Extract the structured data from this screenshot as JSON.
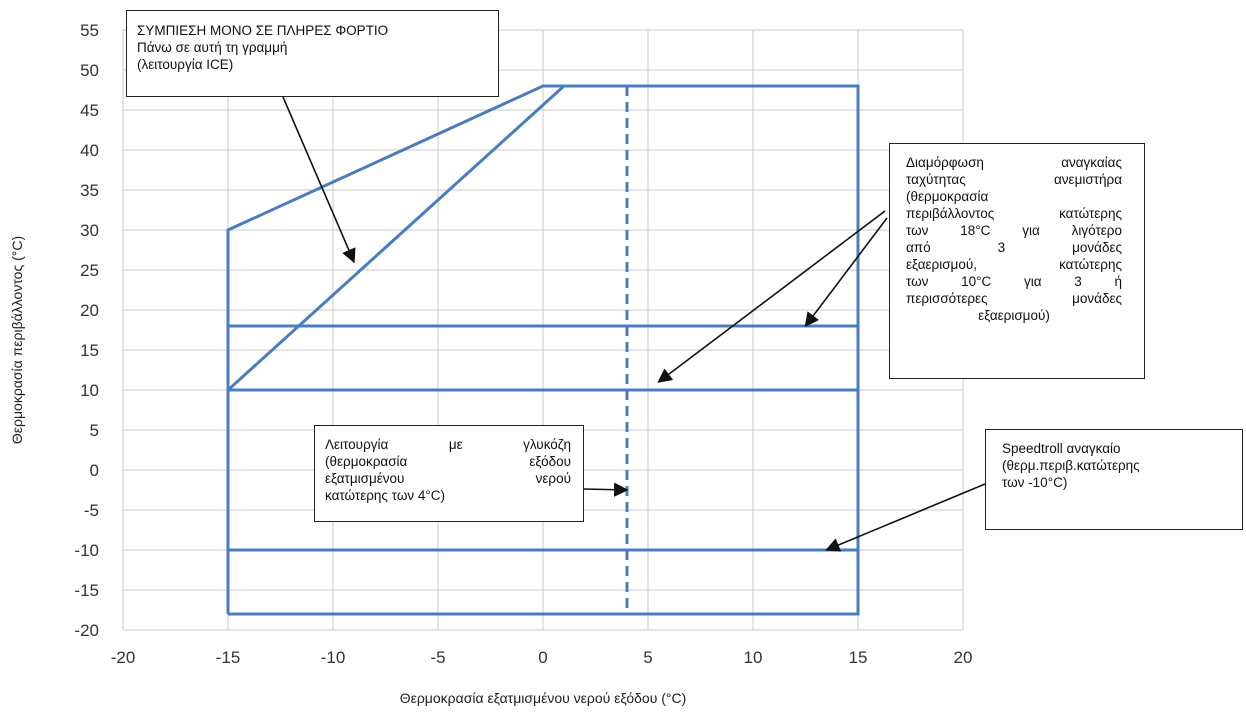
{
  "chart_data": {
    "type": "line",
    "title": "",
    "xlabel": "Θερμοκρασία εξατμισμένου νερού εξόδου (°C)",
    "ylabel": "Θερμοκρασία περιβάλλοντος (°C)",
    "xlim": [
      -20,
      20
    ],
    "ylim": [
      -20,
      55
    ],
    "x_ticks": [
      "-20",
      "-15",
      "-10",
      "-5",
      "0",
      "5",
      "10",
      "15",
      "20"
    ],
    "y_ticks": [
      "55",
      "50",
      "45",
      "40",
      "35",
      "30",
      "25",
      "20",
      "15",
      "10",
      "5",
      "0",
      "-5",
      "-10",
      "-15",
      "-20"
    ],
    "grid": true,
    "series": [
      {
        "style": "solid",
        "points": [
          [
            -15,
            -18
          ],
          [
            -15,
            30
          ],
          [
            0,
            48
          ],
          [
            15,
            48
          ],
          [
            15,
            -18
          ],
          [
            -15,
            -18
          ]
        ]
      },
      {
        "style": "solid",
        "points": [
          [
            -15,
            10
          ],
          [
            1,
            48
          ]
        ]
      },
      {
        "style": "solid",
        "points": [
          [
            -15,
            18
          ],
          [
            15,
            18
          ]
        ]
      },
      {
        "style": "solid",
        "points": [
          [
            -15,
            10
          ],
          [
            15,
            10
          ]
        ]
      },
      {
        "style": "solid",
        "points": [
          [
            -15,
            -10
          ],
          [
            15,
            -10
          ]
        ]
      },
      {
        "style": "dashed",
        "points": [
          [
            4,
            48
          ],
          [
            4,
            -18
          ]
        ]
      }
    ],
    "annotations": [
      {
        "id": "ice",
        "lines": [
          "ΣΥΜΠΙΕΣΗ ΜΟΝΟ ΣΕ ΠΛΗΡΕΣ ΦΟΡΤΙΟ",
          "Πάνω σε αυτή τη γραμμή",
          "(λειτουργία ICE)"
        ],
        "targets": [
          [
            -9,
            26
          ]
        ]
      },
      {
        "id": "fan",
        "lines": [
          "Διαμόρφωση αναγκαίας",
          "ταχύτητας ανεμιστήρα",
          "(θερμοκρασία",
          "περιβάλλοντος κατώτερης",
          "των 18°C για λιγότερο",
          "από 3 μονάδες",
          "εξαερισμού, κατώτερης",
          "των 10°C για 3 ή",
          "περισσότερες μονάδες",
          "εξαερισμού)"
        ],
        "targets": [
          [
            5.5,
            11
          ],
          [
            12.5,
            18
          ]
        ]
      },
      {
        "id": "glycol",
        "lines": [
          "Λειτουργία με γλυκόζη",
          "(θερμοκρασία εξόδου",
          "εξατμισμένου νερού",
          "κατώτερης των 4°C)"
        ],
        "targets": [
          [
            4,
            -2.5
          ]
        ]
      },
      {
        "id": "speedtroll",
        "lines": [
          "Speedtroll αναγκαίο",
          "(θερμ.περιβ.κατώτερης",
          "των -10°C)"
        ],
        "targets": [
          [
            13.5,
            -10
          ]
        ]
      }
    ]
  }
}
